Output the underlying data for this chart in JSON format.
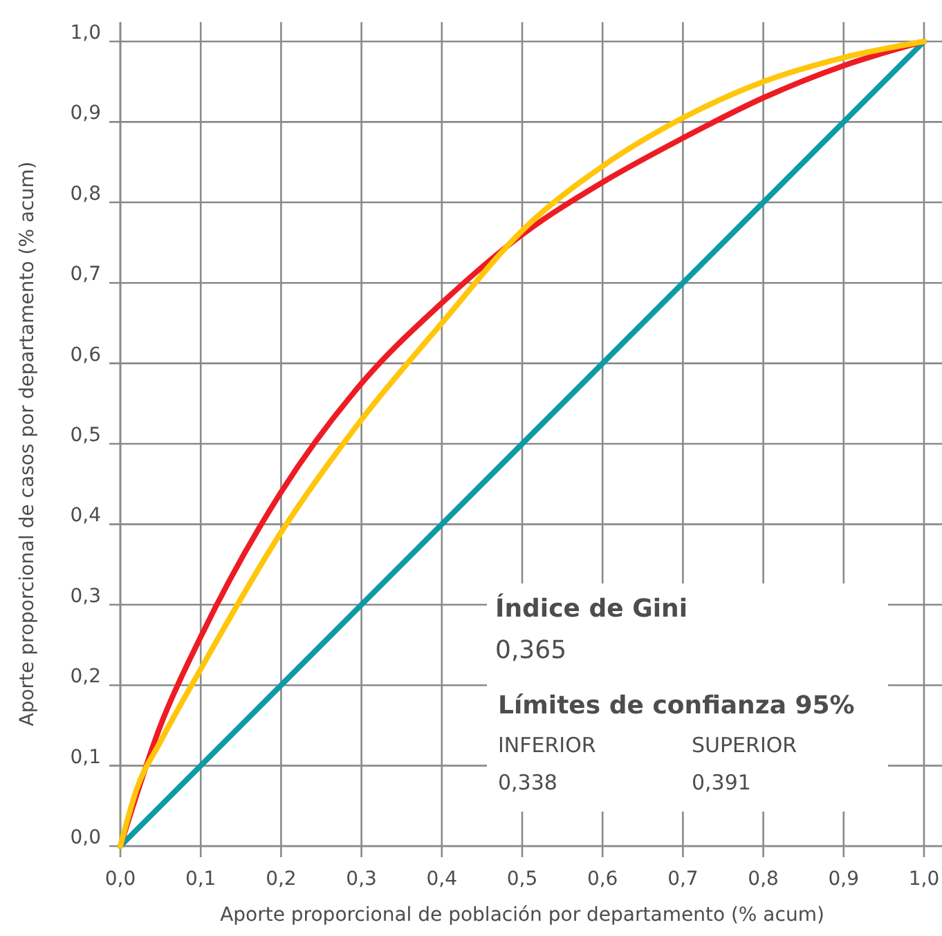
{
  "chart_data": {
    "type": "line",
    "xlabel": "Aporte proporcional de población por departamento (% acum)",
    "ylabel": "Aporte proporcional de casos por departamento (% acum)",
    "xlim": [
      0,
      1
    ],
    "ylim": [
      0,
      1
    ],
    "xticks": [
      {
        "value": 0,
        "label": "0,0"
      },
      {
        "value": 0.1,
        "label": "0,1"
      },
      {
        "value": 0.2,
        "label": "0,2"
      },
      {
        "value": 0.3,
        "label": "0,3"
      },
      {
        "value": 0.4,
        "label": "0,4"
      },
      {
        "value": 0.5,
        "label": "0,5"
      },
      {
        "value": 0.6,
        "label": "0,6"
      },
      {
        "value": 0.7,
        "label": "0,7"
      },
      {
        "value": 0.8,
        "label": "0,8"
      },
      {
        "value": 0.9,
        "label": "0,9"
      },
      {
        "value": 1,
        "label": "1,0"
      }
    ],
    "yticks": [
      {
        "value": 0,
        "label": "0,0"
      },
      {
        "value": 0.1,
        "label": "0,1"
      },
      {
        "value": 0.2,
        "label": "0,2"
      },
      {
        "value": 0.3,
        "label": "0,3"
      },
      {
        "value": 0.4,
        "label": "0,4"
      },
      {
        "value": 0.5,
        "label": "0,5"
      },
      {
        "value": 0.6,
        "label": "0,6"
      },
      {
        "value": 0.7,
        "label": "0,7"
      },
      {
        "value": 0.8,
        "label": "0,8"
      },
      {
        "value": 0.9,
        "label": "0,9"
      },
      {
        "value": 1,
        "label": "1,0"
      }
    ],
    "grid": true,
    "line_style": "solid",
    "marker": "none",
    "series": [
      {
        "color": "#0e9aa7",
        "x": [
          0,
          1
        ],
        "values": [
          0,
          1
        ]
      },
      {
        "color": "#ed1c24",
        "x": [
          0,
          0.05,
          0.1,
          0.2,
          0.3,
          0.4,
          0.5,
          0.6,
          0.7,
          0.8,
          0.9,
          1
        ],
        "values": [
          0,
          0.15,
          0.26,
          0.44,
          0.575,
          0.675,
          0.76,
          0.825,
          0.88,
          0.93,
          0.97,
          1
        ]
      },
      {
        "color": "#ffc60b",
        "x": [
          0,
          0.02,
          0.05,
          0.1,
          0.2,
          0.3,
          0.4,
          0.5,
          0.6,
          0.7,
          0.8,
          0.9,
          1
        ],
        "values": [
          0,
          0.07,
          0.13,
          0.22,
          0.39,
          0.53,
          0.65,
          0.765,
          0.845,
          0.905,
          0.95,
          0.98,
          1
        ]
      }
    ],
    "annotations": [
      "Índice de Gini",
      "0,365",
      "Límites de confianza 95%",
      "INFERIOR",
      "SUPERIOR",
      "0,338",
      "0,391"
    ]
  }
}
